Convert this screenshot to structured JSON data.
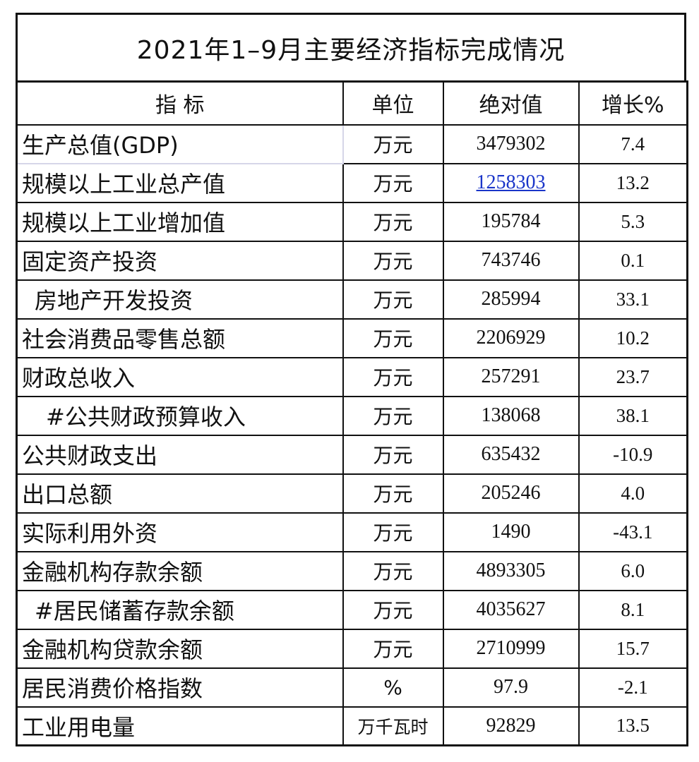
{
  "title": "2021年1–9月主要经济指标完成情况",
  "headers": {
    "indicator": "指  标",
    "unit": "单位",
    "value": "绝对值",
    "growth": "增长%"
  },
  "rows": [
    {
      "name": "生产总值(GDP)",
      "unit": "万元",
      "value": "3479302",
      "growth": "7.4"
    },
    {
      "name": "规模以上工业总产值",
      "unit": "万元",
      "value": "1258303",
      "growth": "13.2"
    },
    {
      "name": "规模以上工业增加值",
      "unit": "万元",
      "value": "195784",
      "growth": "5.3"
    },
    {
      "name": "固定资产投资",
      "unit": "万元",
      "value": "743746",
      "growth": "0.1"
    },
    {
      "name": "房地产开发投资",
      "unit": "万元",
      "value": "285994",
      "growth": "33.1"
    },
    {
      "name": "社会消费品零售总额",
      "unit": "万元",
      "value": "2206929",
      "growth": "10.2"
    },
    {
      "name": "财政总收入",
      "unit": "万元",
      "value": "257291",
      "growth": "23.7"
    },
    {
      "name": "#公共财政预算收入",
      "unit": "万元",
      "value": "138068",
      "growth": "38.1"
    },
    {
      "name": "公共财政支出",
      "unit": "万元",
      "value": "635432",
      "growth": "-10.9"
    },
    {
      "name": "出口总额",
      "unit": "万元",
      "value": "205246",
      "growth": "4.0"
    },
    {
      "name": "实际利用外资",
      "unit": "万元",
      "value": "1490",
      "growth": "-43.1"
    },
    {
      "name": "金融机构存款余额",
      "unit": "万元",
      "value": "4893305",
      "growth": "6.0"
    },
    {
      "name": "#居民储蓄存款余额",
      "unit": "万元",
      "value": "4035627",
      "growth": "8.1"
    },
    {
      "name": "金融机构贷款余额",
      "unit": "万元",
      "value": "2710999",
      "growth": "15.7"
    },
    {
      "name": "居民消费价格指数",
      "unit": "%",
      "value": "97.9",
      "growth": "-2.1"
    },
    {
      "name": "工业用电量",
      "unit": "万千瓦时",
      "value": "92829",
      "growth": "13.5"
    }
  ],
  "colors": {
    "border": "#111111",
    "link": "#1a35c9"
  }
}
